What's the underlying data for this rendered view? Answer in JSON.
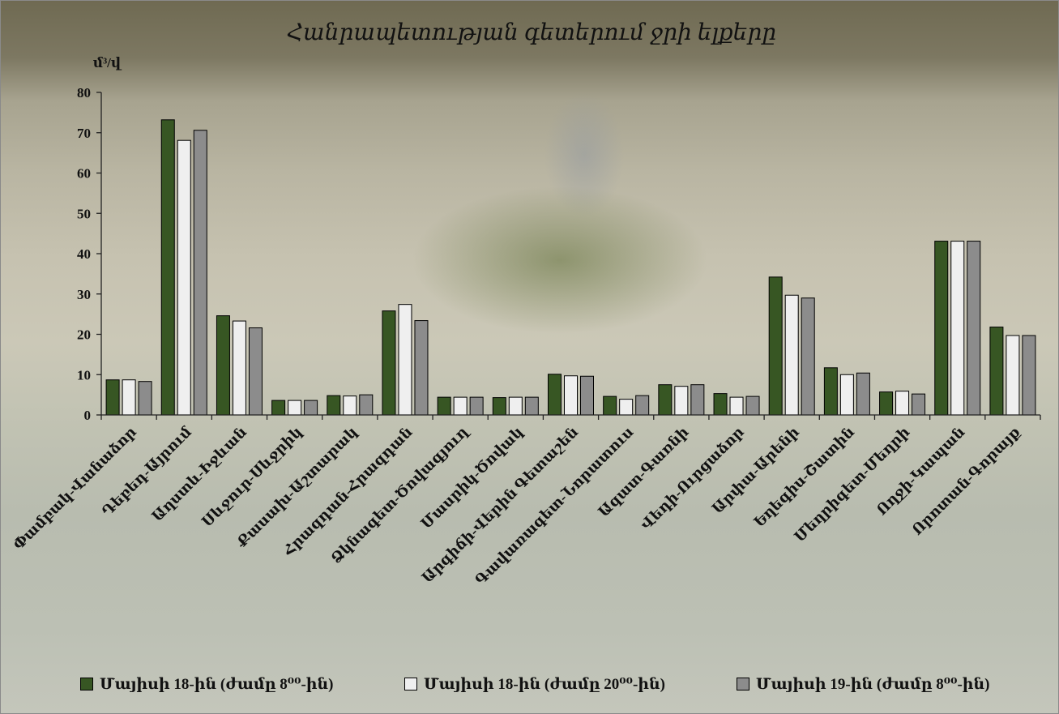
{
  "chart_data": {
    "type": "bar",
    "title": "Հանրապետության գետերում ջրի ելքերը",
    "ylabel": "մ³/վ",
    "ylim": [
      0,
      80
    ],
    "yticks": [
      0,
      10,
      20,
      30,
      40,
      50,
      60,
      70,
      80
    ],
    "grid": false,
    "legend_position": "bottom",
    "categories": [
      "Փամբակ-Վանաձոր",
      "Դեբեդ-Այրում",
      "Աղստև-Իջևան",
      "Սևջուր-Սևջրիկ",
      "Քասախ-Աշտարակ",
      "Հրազդան-Հրազդան",
      "Ձկնագետ-Ծովագյուղ",
      "Մասրիկ-Ծովակ",
      "Արգիճի-Վերին Գետաշեն",
      "Գավառագետ-Նորատուս",
      "Ազատ-Գառնի",
      "Վեդի-Ուրցաձոր",
      "Արփա-Արենի",
      "Եղեգիս-Շատին",
      "Մեղրիգետ-Մեղրի",
      "Ողջի-Կապան",
      "Որոտան-Գորայք"
    ],
    "series": [
      {
        "name": "Մայիսի 18-ին (ժամը 8⁰⁰-ին)",
        "color": "#375623",
        "values": [
          8.7,
          73.2,
          24.6,
          3.6,
          4.8,
          25.8,
          4.4,
          4.3,
          10.1,
          4.6,
          7.5,
          5.3,
          34.2,
          11.7,
          5.7,
          43.1,
          21.8
        ]
      },
      {
        "name": "Մայիսի 18-ին (ժամը 20⁰⁰-ին)",
        "color": "#efefef",
        "values": [
          8.7,
          68.1,
          23.3,
          3.6,
          4.7,
          27.4,
          4.4,
          4.4,
          9.7,
          3.9,
          7.1,
          4.4,
          29.7,
          10.0,
          5.9,
          43.1,
          19.7
        ]
      },
      {
        "name": "Մայիսի 19-ին (ժամը 8⁰⁰-ին)",
        "color": "#8c8c8c",
        "values": [
          8.3,
          70.6,
          21.6,
          3.6,
          5.0,
          23.4,
          4.4,
          4.4,
          9.6,
          4.8,
          7.5,
          4.6,
          29.0,
          10.4,
          5.2,
          43.1,
          19.7
        ]
      }
    ]
  }
}
